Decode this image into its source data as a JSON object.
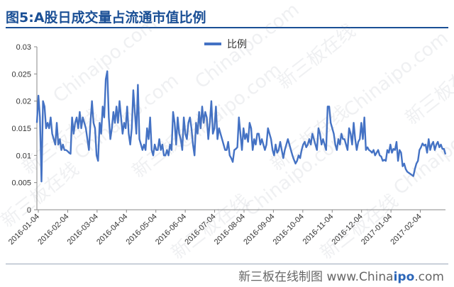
{
  "title": "图5:A股日成交量占流通市值比例",
  "footer": {
    "prefix": "新三板在线制图 www.China",
    "bold": "ipo",
    "suffix": ".com"
  },
  "watermarks": [
    "新三板在线",
    "Chinaipo.com"
  ],
  "colors": {
    "series": "#4472c4",
    "title": "#1a4f95",
    "axis": "#888888"
  },
  "chart_data": {
    "type": "line",
    "title": "",
    "xlabel": "",
    "ylabel": "",
    "ylim": [
      0,
      0.03
    ],
    "yticks": [
      "0",
      "0.005",
      "0.01",
      "0.015",
      "0.02",
      "0.025",
      "0.03"
    ],
    "xticks": [
      "2016-01-04",
      "2016-02-04",
      "2016-03-04",
      "2016-04-04",
      "2016-05-04",
      "2016-06-04",
      "2016-07-04",
      "2016-08-04",
      "2016-09-04",
      "2016-10-04",
      "2016-11-04",
      "2016-12-04",
      "2017-01-04",
      "2017-02-04"
    ],
    "legend": {
      "position": "top",
      "entries": [
        "比例"
      ]
    },
    "grid": false,
    "series": [
      {
        "name": "比例",
        "values": [
          0.016,
          0.021,
          0.017,
          0.0052,
          0.02,
          0.019,
          0.015,
          0.016,
          0.015,
          0.017,
          0.014,
          0.013,
          0.012,
          0.016,
          0.012,
          0.013,
          0.011,
          0.012,
          0.011,
          0.011,
          0.0108,
          0.0105,
          0.0103,
          0.017,
          0.014,
          0.016,
          0.017,
          0.015,
          0.018,
          0.015,
          0.017,
          0.016,
          0.015,
          0.013,
          0.011,
          0.016,
          0.02,
          0.016,
          0.015,
          0.01,
          0.009,
          0.016,
          0.014,
          0.019,
          0.017,
          0.024,
          0.0255,
          0.017,
          0.013,
          0.015,
          0.018,
          0.016,
          0.019,
          0.016,
          0.02,
          0.017,
          0.014,
          0.016,
          0.015,
          0.019,
          0.014,
          0.012,
          0.015,
          0.022,
          0.018,
          0.014,
          0.023,
          0.013,
          0.012,
          0.011,
          0.012,
          0.011,
          0.015,
          0.013,
          0.017,
          0.011,
          0.01,
          0.012,
          0.011,
          0.011,
          0.013,
          0.011,
          0.012,
          0.01,
          0.01,
          0.011,
          0.01,
          0.012,
          0.011,
          0.018,
          0.016,
          0.012,
          0.017,
          0.014,
          0.013,
          0.011,
          0.017,
          0.014,
          0.013,
          0.016,
          0.017,
          0.015,
          0.012,
          0.01,
          0.016,
          0.014,
          0.018,
          0.015,
          0.019,
          0.016,
          0.018,
          0.017,
          0.013,
          0.016,
          0.02,
          0.014,
          0.015,
          0.019,
          0.013,
          0.015,
          0.014,
          0.013,
          0.012,
          0.011,
          0.011,
          0.0125,
          0.01,
          0.0095,
          0.0088,
          0.011,
          0.0112,
          0.0115,
          0.017,
          0.014,
          0.011,
          0.015,
          0.013,
          0.014,
          0.0125,
          0.016,
          0.015,
          0.011,
          0.013,
          0.012,
          0.014,
          0.014,
          0.012,
          0.013,
          0.012,
          0.011,
          0.012,
          0.015,
          0.014,
          0.013,
          0.011,
          0.01,
          0.012,
          0.0105,
          0.011,
          0.0125,
          0.011,
          0.0095,
          0.011,
          0.012,
          0.013,
          0.012,
          0.011,
          0.01,
          0.0092,
          0.0085,
          0.009,
          0.01,
          0.0095,
          0.011,
          0.012,
          0.0125,
          0.0115,
          0.012,
          0.013,
          0.012,
          0.014,
          0.013,
          0.012,
          0.011,
          0.015,
          0.014,
          0.012,
          0.013,
          0.012,
          0.011,
          0.019,
          0.019,
          0.016,
          0.015,
          0.014,
          0.012,
          0.011,
          0.013,
          0.012,
          0.014,
          0.013,
          0.013,
          0.012,
          0.011,
          0.015,
          0.014,
          0.012,
          0.016,
          0.013,
          0.011,
          0.0125,
          0.013,
          0.016,
          0.013,
          0.017,
          0.011,
          0.0115,
          0.011,
          0.0108,
          0.0105,
          0.011,
          0.01,
          0.0105,
          0.011,
          0.01,
          0.0098,
          0.009,
          0.0092,
          0.009,
          0.011,
          0.0105,
          0.012,
          0.0105,
          0.0112,
          0.011,
          0.0125,
          0.009,
          0.011,
          0.0105,
          0.008,
          0.0085,
          0.0075,
          0.007,
          0.0068,
          0.0066,
          0.0064,
          0.0062,
          0.0075,
          0.0085,
          0.009,
          0.011,
          0.0115,
          0.0122,
          0.0118,
          0.012,
          0.0105,
          0.013,
          0.011,
          0.012,
          0.0125,
          0.011,
          0.012,
          0.0125,
          0.0115,
          0.012,
          0.0112,
          0.0112,
          0.0102
        ]
      }
    ]
  }
}
